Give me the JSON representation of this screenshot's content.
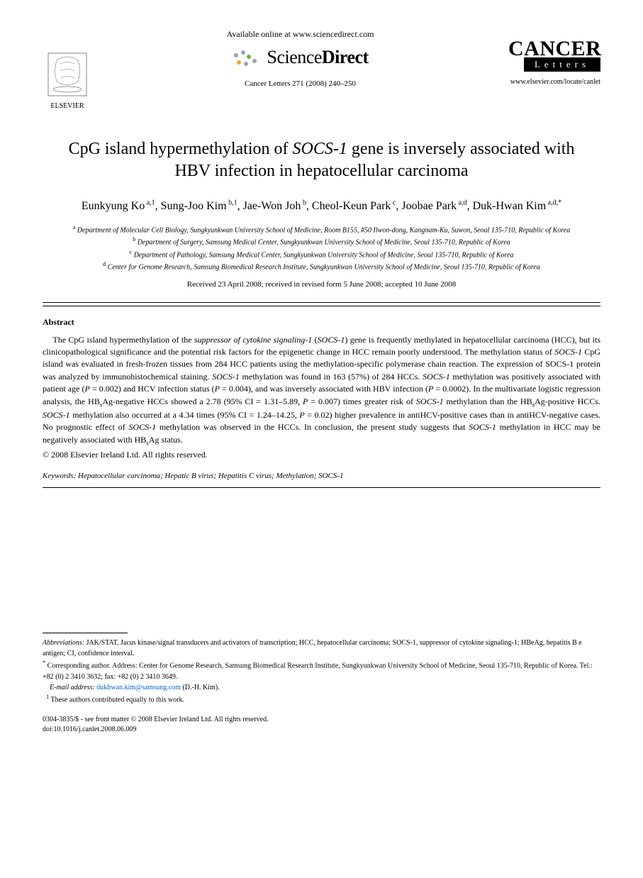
{
  "header": {
    "available_online": "Available online at www.sciencedirect.com",
    "sciencedirect": {
      "part1": "Science",
      "part2": "Direct"
    },
    "journal_ref": "Cancer Letters 271 (2008) 240–250",
    "cancer_logo_top": "CANCER",
    "cancer_logo_bottom": "Letters",
    "journal_url": "www.elsevier.com/locate/canlet",
    "elsevier_label": "ELSEVIER"
  },
  "title": {
    "pre": "CpG island hypermethylation of ",
    "italic": "SOCS-1",
    "post": " gene is inversely associated with HBV infection in hepatocellular carcinoma"
  },
  "authors_html": "Eunkyung Ko<sup> a,1</sup>, Sung-Joo Kim<sup> b,1</sup>, Jae-Won Joh<sup> b</sup>, Cheol-Keun Park<sup> c</sup>, Joobae Park<sup> a,d</sup>, Duk-Hwan Kim<sup> a,d,*</sup>",
  "affiliations": [
    {
      "sup": "a",
      "text": "Department of Molecular Cell Biology, Sungkyunkwan University School of Medicine, Room B155, #50 Ilwon-dong, Kangnam-Ku, Suwon, Seoul 135-710, Republic of Korea"
    },
    {
      "sup": "b",
      "text": "Department of Surgery, Samsung Medical Center, Sungkyunkwan University School of Medicine, Seoul 135-710, Republic of Korea"
    },
    {
      "sup": "c",
      "text": "Department of Pathology, Samsung Medical Center, Sungkyunkwan University School of Medicine, Seoul 135-710, Republic of Korea"
    },
    {
      "sup": "d",
      "text": "Center for Genome Research, Samsung Biomedical Research Institute, Sungkyunkwan University School of Medicine, Seoul 135-710, Republic of Korea"
    }
  ],
  "dates": "Received 23 April 2008; received in revised form 5 June 2008; accepted 10 June 2008",
  "abstract": {
    "label": "Abstract",
    "body_html": "The CpG island hypermethylation of the s<span class=\"italic\">uppressor of cytokine signaling-1</span> (<span class=\"italic\">SOCS-1</span>) gene is frequently methylated in hepatocellular carcinoma (HCC), but its clinicopathological significance and the potential risk factors for the epigenetic change in HCC remain poorly understood. The methylation status of <span class=\"italic\">SOCS-1</span> CpG island was evaluated in fresh-frozen tissues from 284 HCC patients using the methylation-specific polymerase chain reaction. The expression of SOCS-1 protein was analyzed by immunohistochemical staining. <span class=\"italic\">SOCS-1</span> methylation was found in 163 (57%) of 284 HCCs. <span class=\"italic\">SOCS-1</span> methylation was positively associated with patient age (<span class=\"italic\">P</span> = 0.002) and HCV infection status (<span class=\"italic\">P</span> = 0.004), and was inversely associated with HBV infection (<span class=\"italic\">P</span> = 0.0002). In the multivariate logistic regression analysis, the HB<sub>s</sub>Ag-negative HCCs showed a 2.78 (95% CI = 1.31–5.89, <span class=\"italic\">P</span> = 0.007) times greater risk of <span class=\"italic\">SOCS-1</span> methylation than the HB<sub>s</sub>Ag-positive HCCs. <span class=\"italic\">SOCS-1</span> methylation also occurred at a 4.34 times (95% CI = 1.24–14.25, <span class=\"italic\">P</span> = 0.02) higher prevalence in antiHCV-positive cases than in antiHCV-negative cases. No prognostic effect of <span class=\"italic\">SOCS-1</span> methylation was observed in the HCCs. In conclusion, the present study suggests that <span class=\"italic\">SOCS-1</span> methylation in HCC may be negatively associated with HB<sub>s</sub>Ag status."
  },
  "copyright": "© 2008 Elsevier Ireland Ltd. All rights reserved.",
  "keywords": {
    "label": "Keywords:",
    "text": " Hepatocellular carcinoma; Hepatic B virus; Hepatitis C virus; Methylation; SOCS-1"
  },
  "footnotes": {
    "abbrev_label": "Abbreviations:",
    "abbrev_text": " JAK/STAT, Jacus kinase/signal transducers and activators of transcription; HCC, hepatocellular carcinoma; SOCS-1, suppressor of cytokine signaling-1; HBeAg, hepatitis B e antigen; CI, confidence interval.",
    "corresp_marker": "*",
    "corresp_text": " Corresponding author. Address: Center for Genome Research, Samsung Biomedical Research Institute, Sungkyunkwan University School of Medicine, Seoul 135-710, Republic of Korea. Tel.: +82 (0) 2 3410 3632; fax: +82 (0) 2 3410 3649.",
    "email_label": "E-mail address:",
    "email": "dukhwan.kim@samsung.com",
    "email_suffix": " (D.-H. Kim).",
    "equal_marker": "1",
    "equal_text": " These authors contributed equally to this work."
  },
  "footer": {
    "line1": "0304-3835/$ - see front matter © 2008 Elsevier Ireland Ltd. All rights reserved.",
    "line2": "doi:10.1016/j.canlet.2008.06.009"
  },
  "colors": {
    "text": "#000000",
    "link": "#0066cc",
    "sd_dot1": "#9aa5ad",
    "sd_dot2": "#6db33f",
    "sd_dot3": "#f5a623",
    "elsevier_orange": "#ff6600"
  }
}
